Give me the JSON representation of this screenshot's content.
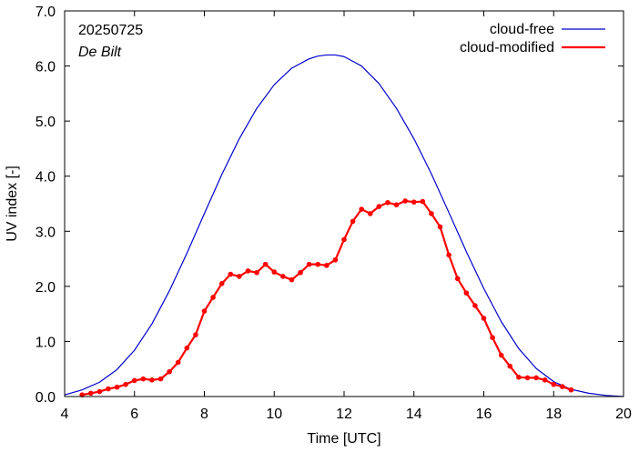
{
  "chart_data": {
    "type": "line",
    "title": "",
    "xlabel": "Time  [UTC]",
    "ylabel": "UV index  [-]",
    "xlim": [
      4,
      20
    ],
    "ylim": [
      0,
      7
    ],
    "xticks": [
      4,
      6,
      8,
      10,
      12,
      14,
      16,
      18,
      20
    ],
    "xtick_labels": [
      "4",
      "6",
      "8",
      "10",
      "12",
      "14",
      "16",
      "18",
      "20"
    ],
    "yticks": [
      0,
      1,
      2,
      3,
      4,
      5,
      6,
      7
    ],
    "ytick_labels": [
      "0.0",
      "1.0",
      "2.0",
      "3.0",
      "4.0",
      "5.0",
      "6.0",
      "7.0"
    ],
    "grid": false,
    "legend_position": "top-right",
    "annotations": {
      "date": "20250725",
      "location": "De Bilt"
    },
    "series": [
      {
        "name": "cloud-free",
        "color": "#0000cc",
        "marker": "none",
        "x": [
          4.0,
          4.5,
          5.0,
          5.5,
          6.0,
          6.5,
          7.0,
          7.5,
          8.0,
          8.5,
          9.0,
          9.5,
          10.0,
          10.5,
          11.0,
          11.25,
          11.5,
          11.75,
          12.0,
          12.5,
          13.0,
          13.5,
          14.0,
          14.5,
          15.0,
          15.5,
          16.0,
          16.5,
          17.0,
          17.5,
          18.0,
          18.5,
          19.0,
          19.5,
          20.0
        ],
        "y": [
          0.03,
          0.12,
          0.26,
          0.49,
          0.84,
          1.32,
          1.92,
          2.6,
          3.32,
          4.03,
          4.68,
          5.23,
          5.66,
          5.96,
          6.13,
          6.18,
          6.2,
          6.2,
          6.17,
          6.0,
          5.68,
          5.23,
          4.68,
          4.04,
          3.34,
          2.63,
          1.96,
          1.36,
          0.87,
          0.51,
          0.27,
          0.13,
          0.06,
          0.02,
          0.0
        ]
      },
      {
        "name": "cloud-modified",
        "color": "#ff0000",
        "marker": "circle",
        "x": [
          4.5,
          4.75,
          5.0,
          5.25,
          5.5,
          5.75,
          6.0,
          6.25,
          6.5,
          6.75,
          7.0,
          7.25,
          7.5,
          7.75,
          8.0,
          8.25,
          8.5,
          8.75,
          9.0,
          9.25,
          9.5,
          9.75,
          10.0,
          10.25,
          10.5,
          10.75,
          11.0,
          11.25,
          11.5,
          11.75,
          12.0,
          12.25,
          12.5,
          12.75,
          13.0,
          13.25,
          13.5,
          13.75,
          14.0,
          14.25,
          14.5,
          14.75,
          15.0,
          15.25,
          15.5,
          15.75,
          16.0,
          16.25,
          16.5,
          16.75,
          17.0,
          17.25,
          17.5,
          17.75,
          18.0,
          18.25,
          18.5
        ],
        "y": [
          0.03,
          0.06,
          0.09,
          0.14,
          0.17,
          0.22,
          0.29,
          0.32,
          0.3,
          0.32,
          0.45,
          0.62,
          0.88,
          1.12,
          1.55,
          1.8,
          2.05,
          2.22,
          2.18,
          2.28,
          2.25,
          2.4,
          2.26,
          2.18,
          2.12,
          2.25,
          2.4,
          2.4,
          2.38,
          2.48,
          2.85,
          3.18,
          3.4,
          3.32,
          3.45,
          3.52,
          3.48,
          3.55,
          3.53,
          3.54,
          3.32,
          3.08,
          2.57,
          2.14,
          1.88,
          1.65,
          1.42,
          1.07,
          0.75,
          0.55,
          0.35,
          0.34,
          0.34,
          0.3,
          0.22,
          0.18,
          0.12
        ]
      }
    ]
  }
}
